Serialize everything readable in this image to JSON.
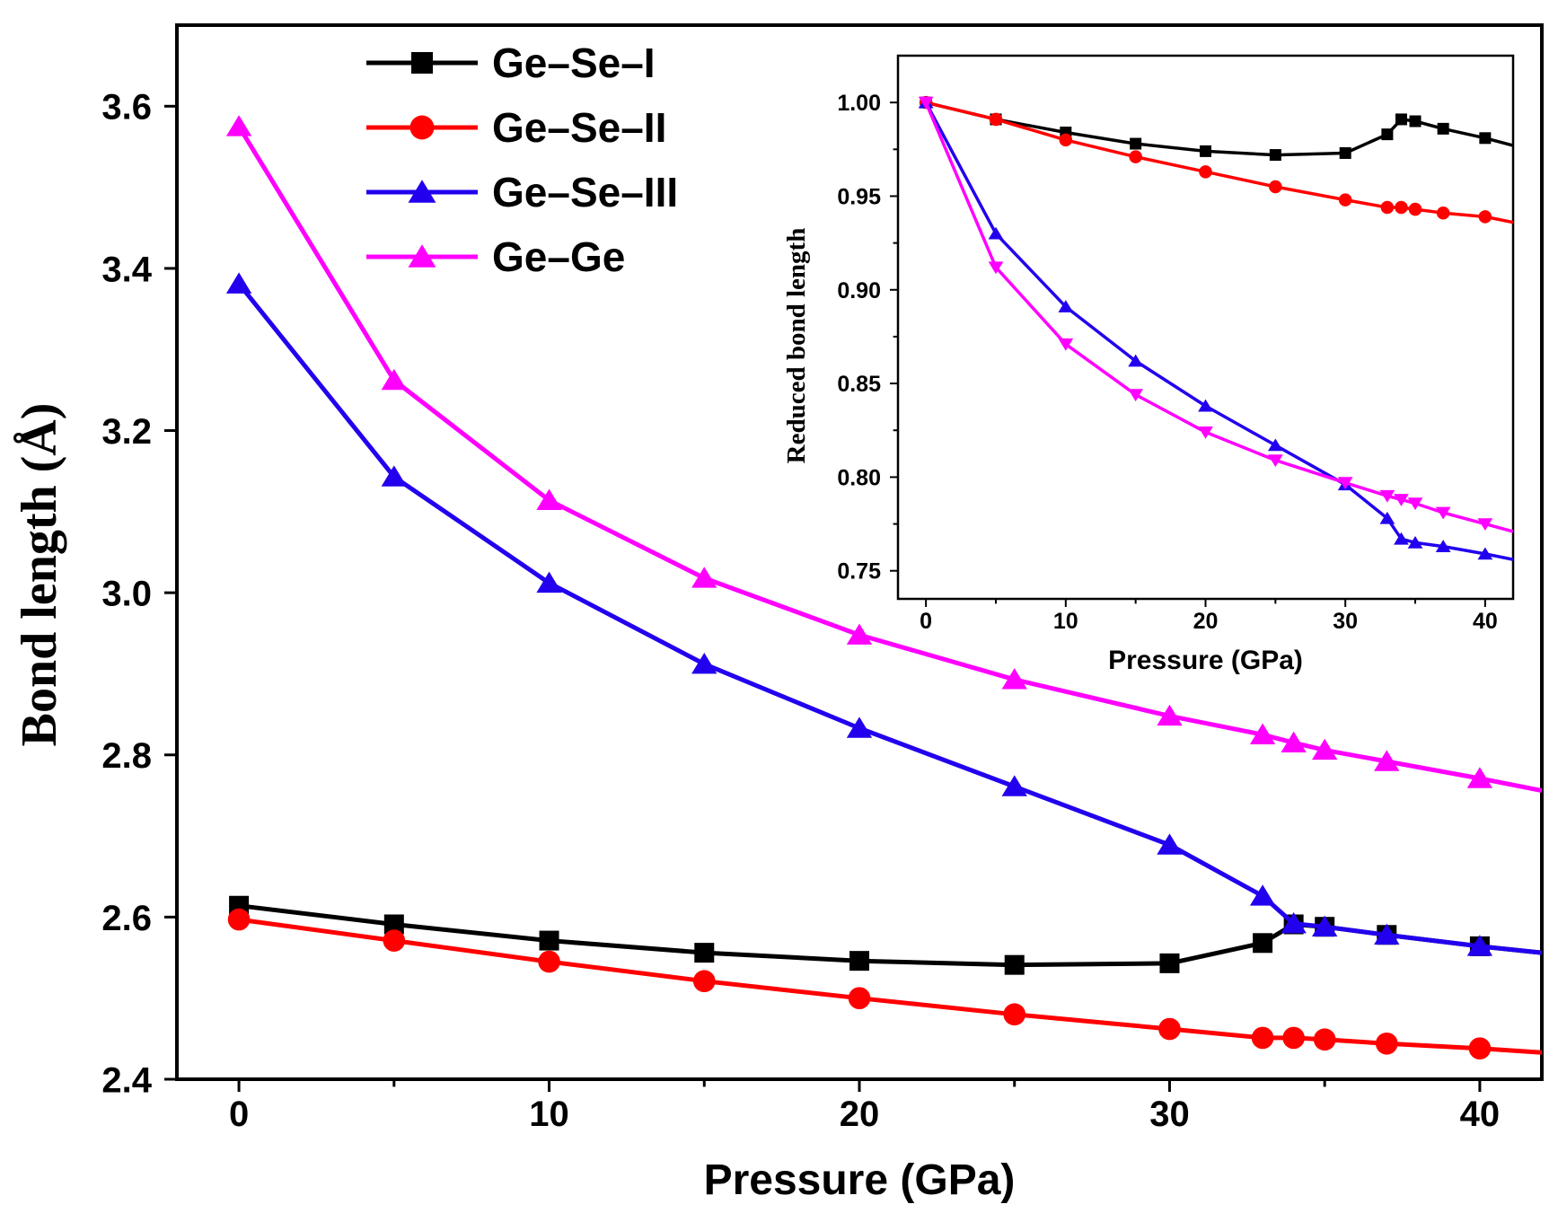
{
  "chart_data": [
    {
      "type": "line",
      "role": "main",
      "title": "",
      "xlabel": "Pressure (GPa)",
      "ylabel": "Bond length (Å)",
      "xlim": [
        -2,
        42
      ],
      "ylim": [
        2.4,
        3.7
      ],
      "x_ticks": [
        0,
        10,
        20,
        30,
        40
      ],
      "x_minor_ticks": [
        5,
        15,
        25,
        35
      ],
      "y_ticks": [
        2.4,
        2.6,
        2.8,
        3.0,
        3.2,
        3.4,
        3.6
      ],
      "x_tick_labels": [
        "0",
        "10",
        "20",
        "30",
        "40"
      ],
      "y_tick_labels": [
        "2.4",
        "2.6",
        "2.8",
        "3.0",
        "3.2",
        "3.4",
        "3.6"
      ],
      "legend_position": "top-left",
      "grid": false,
      "x": [
        0,
        5,
        10,
        15,
        20,
        25,
        30,
        33,
        34,
        35,
        37,
        40,
        42
      ],
      "series": [
        {
          "name": "Ge–Se–I",
          "color": "#000000",
          "marker": "square",
          "values": [
            2.614,
            2.591,
            2.571,
            2.556,
            2.546,
            2.541,
            2.543,
            2.568,
            2.591,
            2.588,
            2.578,
            2.564,
            2.556
          ]
        },
        {
          "name": "Ge–Se–II",
          "color": "#ff0000",
          "marker": "circle",
          "values": [
            2.597,
            2.571,
            2.545,
            2.521,
            2.5,
            2.48,
            2.462,
            2.451,
            2.451,
            2.449,
            2.444,
            2.438,
            2.433
          ]
        },
        {
          "name": "Ge–Se–III",
          "color": "#2200ee",
          "marker": "triangle-up",
          "values": [
            3.381,
            3.143,
            3.012,
            2.912,
            2.833,
            2.761,
            2.689,
            2.626,
            2.592,
            2.588,
            2.578,
            2.564,
            2.556
          ]
        },
        {
          "name": "Ge–Ge",
          "color": "#ff00ff",
          "marker": "triangle-up",
          "values": [
            3.575,
            3.262,
            3.114,
            3.018,
            2.948,
            2.893,
            2.848,
            2.825,
            2.815,
            2.806,
            2.792,
            2.771,
            2.756
          ]
        }
      ]
    },
    {
      "type": "line",
      "role": "inset",
      "title": "",
      "xlabel": "Pressure (GPa)",
      "ylabel": "Reduced bond length",
      "xlim": [
        -2,
        42
      ],
      "ylim": [
        0.735,
        1.025
      ],
      "x_ticks": [
        0,
        10,
        20,
        30,
        40
      ],
      "x_minor_ticks": [
        5,
        15,
        25,
        35
      ],
      "y_ticks": [
        0.75,
        0.8,
        0.85,
        0.9,
        0.95,
        1.0
      ],
      "x_tick_labels": [
        "0",
        "10",
        "20",
        "30",
        "40"
      ],
      "y_tick_labels": [
        "0.75",
        "0.80",
        "0.85",
        "0.90",
        "0.95",
        "1.00"
      ],
      "legend_position": "none",
      "grid": false,
      "x": [
        0,
        5,
        10,
        15,
        20,
        25,
        30,
        33,
        34,
        35,
        37,
        40,
        42
      ],
      "series": [
        {
          "name": "Ge–Se–I",
          "color": "#000000",
          "marker": "square",
          "values": [
            1.0,
            0.991,
            0.984,
            0.978,
            0.974,
            0.972,
            0.973,
            0.983,
            0.991,
            0.99,
            0.986,
            0.981,
            0.977
          ]
        },
        {
          "name": "Ge–Se–II",
          "color": "#ff0000",
          "marker": "circle",
          "values": [
            1.0,
            0.991,
            0.98,
            0.971,
            0.963,
            0.955,
            0.948,
            0.944,
            0.944,
            0.943,
            0.941,
            0.939,
            0.936
          ]
        },
        {
          "name": "Ge–Se–III",
          "color": "#2200ee",
          "marker": "triangle-up",
          "values": [
            1.0,
            0.93,
            0.891,
            0.862,
            0.838,
            0.817,
            0.796,
            0.778,
            0.767,
            0.765,
            0.763,
            0.759,
            0.756
          ]
        },
        {
          "name": "Ge–Ge",
          "color": "#ff00ff",
          "marker": "triangle-down",
          "values": [
            1.0,
            0.912,
            0.871,
            0.844,
            0.824,
            0.809,
            0.797,
            0.79,
            0.788,
            0.786,
            0.781,
            0.775,
            0.771
          ]
        }
      ]
    }
  ]
}
